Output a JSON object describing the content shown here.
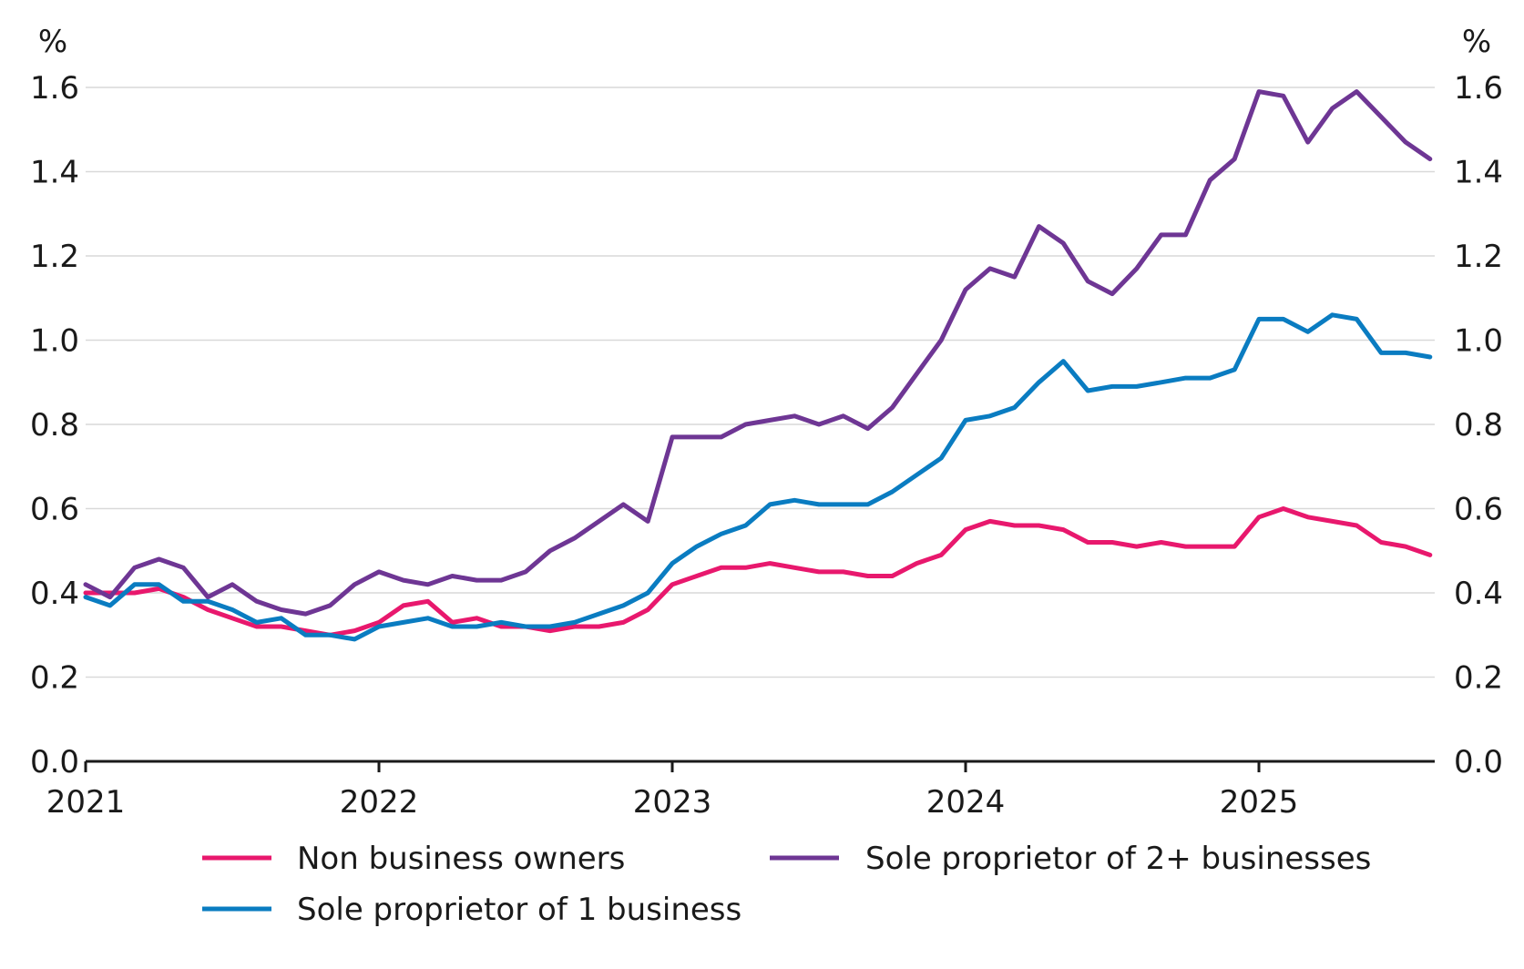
{
  "chart_data": {
    "type": "line",
    "y_unit_left": "%",
    "y_unit_right": "%",
    "ylim": [
      0,
      1.6
    ],
    "y_ticks": [
      "0.0",
      "0.2",
      "0.4",
      "0.6",
      "0.8",
      "1.0",
      "1.2",
      "1.4",
      "1.6"
    ],
    "x_ticks": [
      "2021",
      "2022",
      "2023",
      "2024",
      "2025"
    ],
    "x_start": "2021-01",
    "x_end": "2025-07",
    "series": [
      {
        "name": "Non business owners",
        "color": "#e8186d",
        "values": [
          0.4,
          0.4,
          0.4,
          0.41,
          0.39,
          0.36,
          0.34,
          0.32,
          0.32,
          0.31,
          0.3,
          0.31,
          0.33,
          0.37,
          0.38,
          0.33,
          0.34,
          0.32,
          0.32,
          0.31,
          0.32,
          0.32,
          0.33,
          0.36,
          0.42,
          0.44,
          0.46,
          0.46,
          0.47,
          0.46,
          0.45,
          0.45,
          0.44,
          0.44,
          0.47,
          0.49,
          0.55,
          0.57,
          0.56,
          0.56,
          0.55,
          0.52,
          0.52,
          0.51,
          0.52,
          0.51,
          0.51,
          0.51,
          0.58,
          0.6,
          0.58,
          0.57,
          0.56,
          0.52,
          0.51,
          0.49
        ]
      },
      {
        "name": "Sole proprietor of 1 business",
        "color": "#0a7cc1",
        "values": [
          0.39,
          0.37,
          0.42,
          0.42,
          0.38,
          0.38,
          0.36,
          0.33,
          0.34,
          0.3,
          0.3,
          0.29,
          0.32,
          0.33,
          0.34,
          0.32,
          0.32,
          0.33,
          0.32,
          0.32,
          0.33,
          0.35,
          0.37,
          0.4,
          0.47,
          0.51,
          0.54,
          0.56,
          0.61,
          0.62,
          0.61,
          0.61,
          0.61,
          0.64,
          0.68,
          0.72,
          0.81,
          0.82,
          0.84,
          0.9,
          0.95,
          0.88,
          0.89,
          0.89,
          0.9,
          0.91,
          0.91,
          0.93,
          1.05,
          1.05,
          1.02,
          1.06,
          1.05,
          0.97,
          0.97,
          0.96
        ]
      },
      {
        "name": "Sole proprietor of 2+ businesses",
        "color": "#6e3694",
        "values": [
          0.42,
          0.39,
          0.46,
          0.48,
          0.46,
          0.39,
          0.42,
          0.38,
          0.36,
          0.35,
          0.37,
          0.42,
          0.45,
          0.43,
          0.42,
          0.44,
          0.43,
          0.43,
          0.45,
          0.5,
          0.53,
          0.57,
          0.61,
          0.57,
          0.77,
          0.77,
          0.77,
          0.8,
          0.81,
          0.82,
          0.8,
          0.82,
          0.79,
          0.84,
          0.92,
          1.0,
          1.12,
          1.17,
          1.15,
          1.27,
          1.23,
          1.14,
          1.11,
          1.17,
          1.25,
          1.25,
          1.38,
          1.43,
          1.59,
          1.58,
          1.47,
          1.55,
          1.59,
          1.53,
          1.47,
          1.43
        ]
      }
    ],
    "legend_placement": "bottom"
  }
}
